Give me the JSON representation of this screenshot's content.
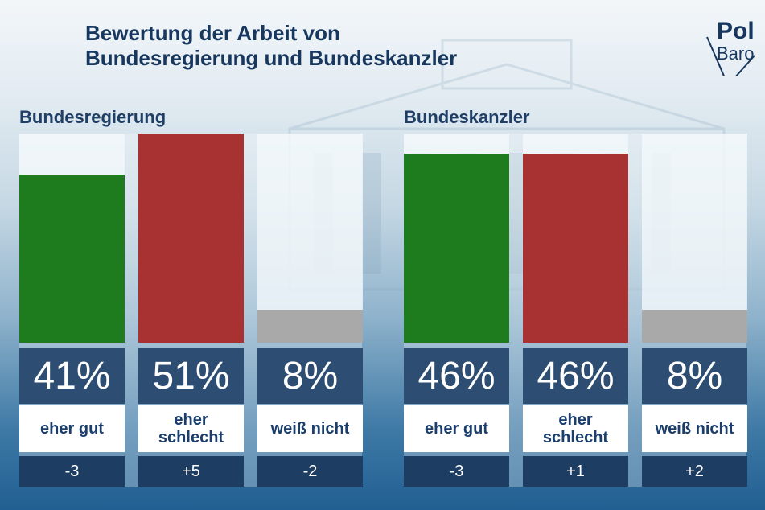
{
  "title_line1": "Bewertung der Arbeit von",
  "title_line2": "Bundesregierung und Bundeskanzler",
  "logo": {
    "line1": "Pol",
    "line2": "Baro"
  },
  "colors": {
    "positive": "#1e7b1e",
    "negative": "#a83232",
    "neutral": "#a9a9a9"
  },
  "chart_data": [
    {
      "type": "bar",
      "title": "Bundesregierung",
      "categories": [
        "eher gut",
        "eher\nschlecht",
        "weiß nicht"
      ],
      "values": [
        41,
        51,
        8
      ],
      "value_labels": [
        "41%",
        "51%",
        "8%"
      ],
      "changes": [
        "-3",
        "+5",
        "-2"
      ],
      "ylim": [
        0,
        51
      ]
    },
    {
      "type": "bar",
      "title": "Bundeskanzler",
      "categories": [
        "eher gut",
        "eher\nschlecht",
        "weiß nicht"
      ],
      "values": [
        46,
        46,
        8
      ],
      "value_labels": [
        "46%",
        "46%",
        "8%"
      ],
      "changes": [
        "-3",
        "+1",
        "+2"
      ],
      "ylim": [
        0,
        51
      ]
    }
  ]
}
